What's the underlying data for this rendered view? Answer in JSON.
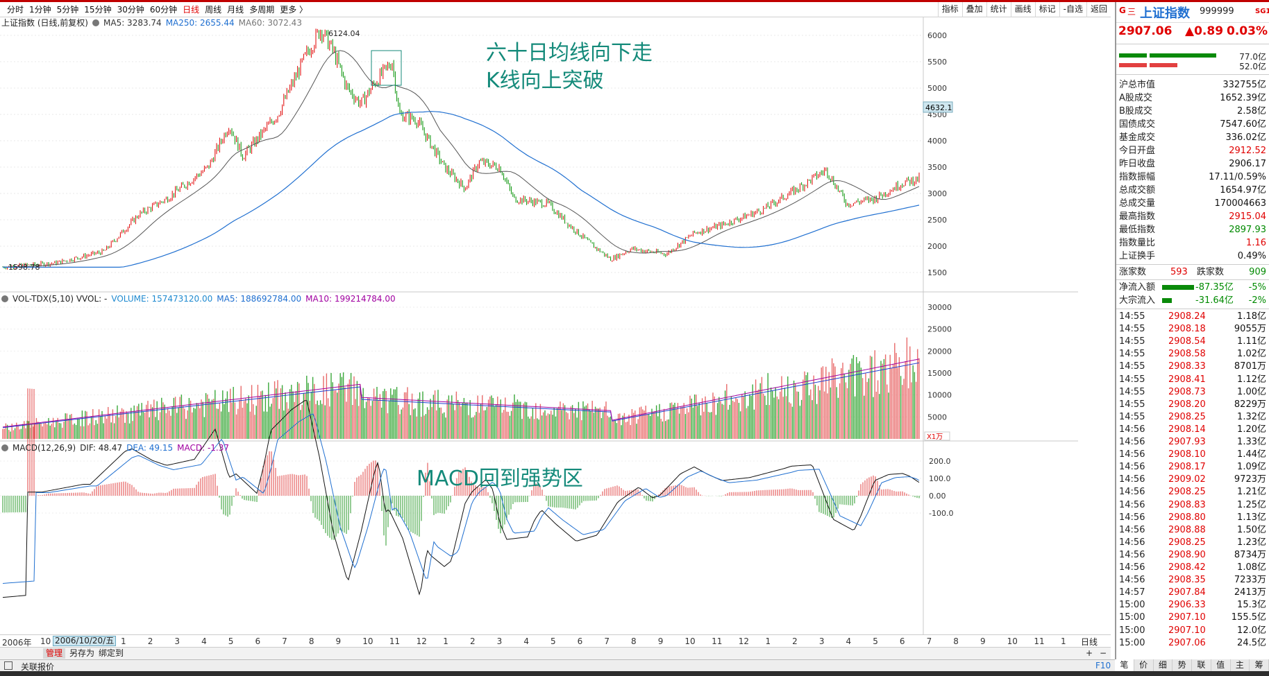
{
  "toolbar": {
    "periods": [
      "分时",
      "1分钟",
      "5分钟",
      "15分钟",
      "30分钟",
      "60分钟",
      "日线",
      "周线",
      "月线",
      "多周期",
      "更多 〉"
    ],
    "active_period": "日线",
    "right_tools": [
      "指标",
      "叠加",
      "统计",
      "画线",
      "标记",
      "-自选",
      "返回"
    ]
  },
  "main_chart": {
    "name": "上证指数 (日线,前复权)",
    "ma5": "MA5: 3283.74",
    "ma250": "MA250: 2655.44",
    "ma60": "MA60: 3072.43",
    "high_mark": "6124.04",
    "low_mark": "1598.78",
    "cursor_price": "4632.1",
    "y_ticks": [
      "6000",
      "5500",
      "5000",
      "4500",
      "4000",
      "3500",
      "3000",
      "2500",
      "2000",
      "1500"
    ]
  },
  "annotations": {
    "line1": "六十日均线向下走",
    "line2": "K线向上突破",
    "macd": "MACD回到强势区"
  },
  "vol_chart": {
    "name": "VOL-TDX(5,10) VVOL: -",
    "volume": "VOLUME: 157473120.00",
    "ma5": "MA5: 188692784.00",
    "ma10": "MA10: 199214784.00",
    "y_ticks": [
      "30000",
      "25000",
      "20000",
      "15000",
      "10000",
      "5000"
    ],
    "unit": "X1万"
  },
  "macd_chart": {
    "name": "MACD(12,26,9)",
    "dif": "DIF: 48.47",
    "dea": "DEA: 49.15",
    "macd": "MACD: -1.37",
    "y_ticks": [
      "200.0",
      "100.0",
      "0.00",
      "-100.0"
    ]
  },
  "date_axis": {
    "year": "2006年",
    "cursor_date": "2006/10/20/五",
    "months": [
      "10",
      "11",
      "12",
      "1",
      "2",
      "3",
      "4",
      "5",
      "6",
      "7",
      "8",
      "9",
      "10",
      "11",
      "12",
      "1",
      "2",
      "3",
      "4",
      "5",
      "6",
      "7",
      "8",
      "9",
      "10",
      "11",
      "12",
      "1",
      "2",
      "3",
      "4",
      "5",
      "6",
      "7",
      "8",
      "9",
      "10",
      "11",
      "1"
    ],
    "mode": "日线"
  },
  "bottom_buttons": [
    "管理",
    "另存为",
    "绑定到"
  ],
  "status": {
    "label": "关联报价",
    "f10": "F10"
  },
  "info": {
    "badge": "G",
    "menu": "三",
    "title": "上证指数",
    "code": "999999",
    "tag": "SG1",
    "price": "2907.06",
    "change": "▲0.89",
    "pct": "0.03%",
    "buy_vol": "77.0亿",
    "sell_vol": "52.0亿",
    "rows": [
      {
        "k": "沪总市值",
        "v": "332755亿",
        "c": "blk"
      },
      {
        "k": "A股成交",
        "v": "1652.39亿",
        "c": "blk"
      },
      {
        "k": "B股成交",
        "v": "2.58亿",
        "c": "blk"
      },
      {
        "k": "国债成交",
        "v": "7547.60亿",
        "c": "blk"
      },
      {
        "k": "基金成交",
        "v": "336.02亿",
        "c": "blk"
      },
      {
        "k": "今日开盘",
        "v": "2912.52",
        "c": "red"
      },
      {
        "k": "昨日收盘",
        "v": "2906.17",
        "c": "blk"
      },
      {
        "k": "指数振幅",
        "v": "17.11/0.59%",
        "c": "blk"
      },
      {
        "k": "总成交额",
        "v": "1654.97亿",
        "c": "blk"
      },
      {
        "k": "总成交量",
        "v": "170004663",
        "c": "blk"
      },
      {
        "k": "最高指数",
        "v": "2915.04",
        "c": "red"
      },
      {
        "k": "最低指数",
        "v": "2897.93",
        "c": "green"
      },
      {
        "k": "指数量比",
        "v": "1.16",
        "c": "red"
      },
      {
        "k": "上证换手",
        "v": "0.49%",
        "c": "blk"
      }
    ],
    "up_label": "涨家数",
    "up": "593",
    "down_label": "跌家数",
    "down": "909",
    "flow_label": "净流入额",
    "flow": "-87.35亿",
    "flow_pct": "-5%",
    "block_label": "大宗流入",
    "block": "-31.64亿",
    "block_pct": "-2%",
    "ticks": [
      {
        "t": "14:55",
        "p": "2908.24",
        "q": "1.18亿"
      },
      {
        "t": "14:55",
        "p": "2908.18",
        "q": "9055万"
      },
      {
        "t": "14:55",
        "p": "2908.54",
        "q": "1.11亿"
      },
      {
        "t": "14:55",
        "p": "2908.58",
        "q": "1.02亿"
      },
      {
        "t": "14:55",
        "p": "2908.33",
        "q": "8701万"
      },
      {
        "t": "14:55",
        "p": "2908.41",
        "q": "1.12亿"
      },
      {
        "t": "14:55",
        "p": "2908.73",
        "q": "1.00亿"
      },
      {
        "t": "14:55",
        "p": "2908.20",
        "q": "8229万"
      },
      {
        "t": "14:55",
        "p": "2908.25",
        "q": "1.32亿"
      },
      {
        "t": "14:56",
        "p": "2908.14",
        "q": "1.20亿"
      },
      {
        "t": "14:56",
        "p": "2907.93",
        "q": "1.33亿"
      },
      {
        "t": "14:56",
        "p": "2908.10",
        "q": "1.44亿"
      },
      {
        "t": "14:56",
        "p": "2908.17",
        "q": "1.09亿"
      },
      {
        "t": "14:56",
        "p": "2909.02",
        "q": "9723万"
      },
      {
        "t": "14:56",
        "p": "2908.25",
        "q": "1.21亿"
      },
      {
        "t": "14:56",
        "p": "2908.83",
        "q": "1.25亿"
      },
      {
        "t": "14:56",
        "p": "2908.80",
        "q": "1.13亿"
      },
      {
        "t": "14:56",
        "p": "2908.88",
        "q": "1.50亿"
      },
      {
        "t": "14:56",
        "p": "2908.25",
        "q": "1.23亿"
      },
      {
        "t": "14:56",
        "p": "2908.90",
        "q": "8734万"
      },
      {
        "t": "14:56",
        "p": "2908.42",
        "q": "1.08亿"
      },
      {
        "t": "14:56",
        "p": "2908.35",
        "q": "7233万"
      },
      {
        "t": "14:57",
        "p": "2907.84",
        "q": "2413万"
      },
      {
        "t": "15:00",
        "p": "2906.33",
        "q": "15.3亿"
      },
      {
        "t": "15:00",
        "p": "2907.10",
        "q": "155.5亿"
      },
      {
        "t": "15:00",
        "p": "2907.10",
        "q": "12.0亿"
      },
      {
        "t": "15:00",
        "p": "2907.06",
        "q": "24.5亿"
      }
    ],
    "tabs": [
      "笔",
      "价",
      "细",
      "势",
      "联",
      "值",
      "主",
      "筹"
    ]
  },
  "colors": {
    "up": "#e00000",
    "down": "#009000",
    "ma60": "#555555",
    "ma250": "#1f6fd0",
    "annot": "#148a7a"
  }
}
